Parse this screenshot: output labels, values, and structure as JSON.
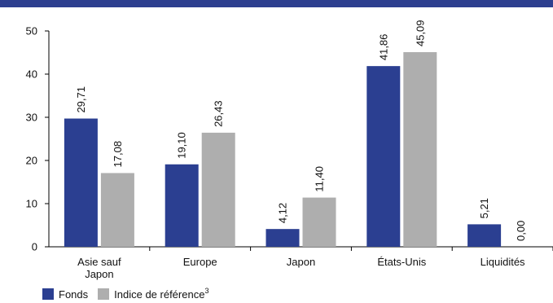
{
  "colors": {
    "accent_bar": "#2d3f8f",
    "fonds": "#2b3f91",
    "indice": "#aeaeae",
    "axis": "#000000"
  },
  "legend": {
    "fonds_label": "Fonds",
    "indice_label": "Indice de référence",
    "indice_sup": "3"
  },
  "chart_data": {
    "type": "bar",
    "categories": [
      [
        "Asie sauf",
        "Japon"
      ],
      [
        "Europe"
      ],
      [
        "Japon"
      ],
      [
        "États-Unis"
      ],
      [
        "Liquidités"
      ]
    ],
    "series": [
      {
        "name": "Fonds",
        "values": [
          29.71,
          19.1,
          4.12,
          41.86,
          5.21
        ],
        "labels": [
          "29,71",
          "19,10",
          "4,12",
          "41,86",
          "5,21"
        ],
        "color": "#2b3f91"
      },
      {
        "name": "Indice de référence",
        "values": [
          17.08,
          26.43,
          11.4,
          45.09,
          0.0
        ],
        "labels": [
          "17,08",
          "26,43",
          "11,40",
          "45,09",
          "0,00"
        ],
        "color": "#aeaeae"
      }
    ],
    "ylim": [
      0,
      50
    ],
    "yticks": [
      0,
      10,
      20,
      30,
      40,
      50
    ],
    "grid": false,
    "legend_position": "bottom-left"
  }
}
